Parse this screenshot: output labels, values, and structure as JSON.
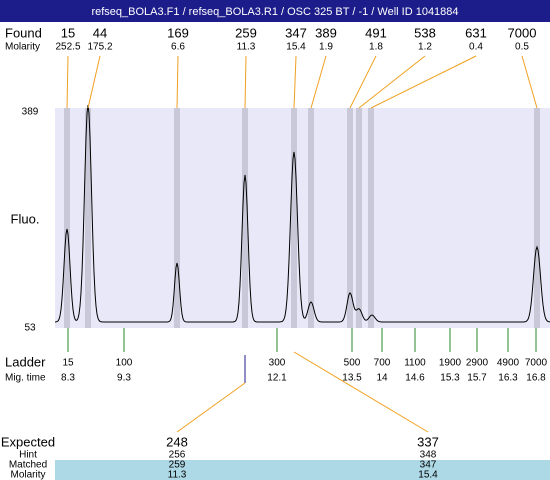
{
  "header": {
    "title": "refseq_BOLA3.F1 / refseq_BOLA3.R1 / OSC 325 BT / -1 / Well ID 1041884"
  },
  "found": {
    "label": "Found",
    "molarity_label": "Molarity",
    "sizes": [
      15,
      44,
      169,
      259,
      347,
      389,
      491,
      538,
      631,
      7000
    ],
    "molarity": [
      252.5,
      175.2,
      6.6,
      11.3,
      15.4,
      1.9,
      1.8,
      1.2,
      0.4,
      0.5
    ]
  },
  "axis": {
    "top": 389,
    "bottom": 53,
    "label": "Fluo."
  },
  "ladder": {
    "label": "Ladder",
    "mig_label": "Mig. time",
    "sizes": [
      15,
      100,
      300,
      500,
      700,
      1100,
      1900,
      2900,
      4900,
      7000
    ],
    "mig_times": [
      8.3,
      9.3,
      12.1,
      13.5,
      14,
      14.6,
      15.3,
      15.7,
      16.3,
      16.8
    ]
  },
  "expected": {
    "label": "Expected",
    "hint_label": "Hint",
    "matched_label": "Matched",
    "molarity_label": "Molarity",
    "peaks": [
      {
        "expected": 248,
        "hint": 256,
        "matched": 259,
        "molarity": 11.3
      },
      {
        "expected": 337,
        "hint": 348,
        "matched": 347,
        "molarity": 15.4
      }
    ]
  }
}
